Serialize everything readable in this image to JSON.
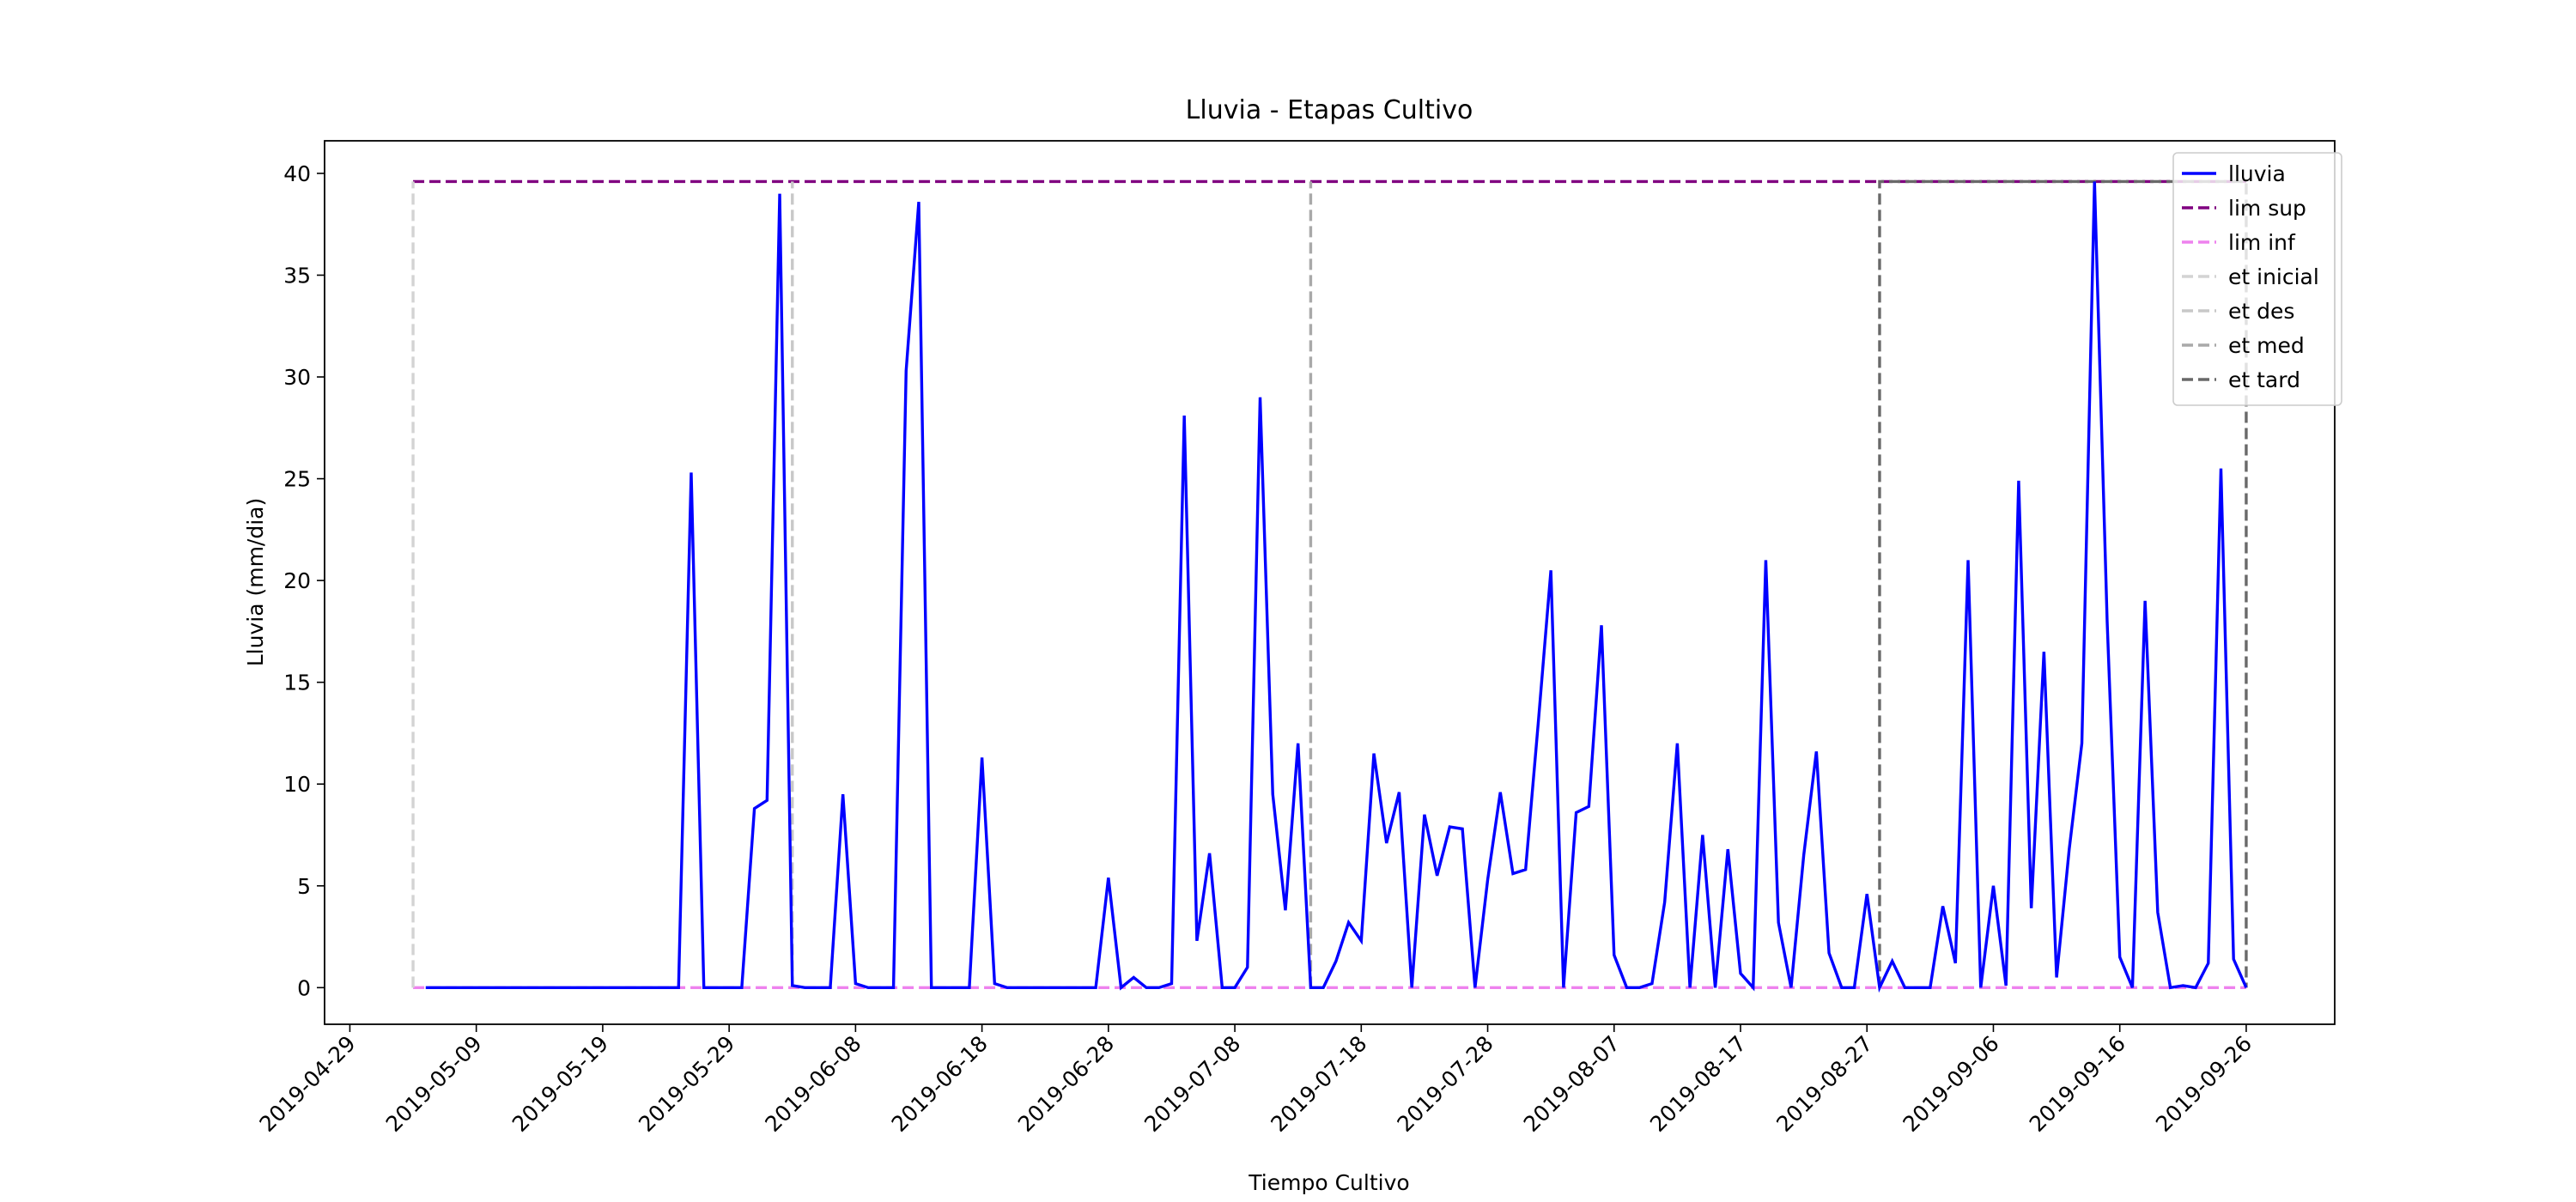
{
  "chart_data": {
    "type": "line",
    "title": "Lluvia - Etapas Cultivo",
    "x_label": "Tiempo Cultivo",
    "y_label": "Lluvia (mm/dia)",
    "xlim": [
      "2019-04-27",
      "2019-10-03"
    ],
    "xticks": [
      "2019-04-29",
      "2019-05-09",
      "2019-05-19",
      "2019-05-29",
      "2019-06-08",
      "2019-06-18",
      "2019-06-28",
      "2019-07-08",
      "2019-07-18",
      "2019-07-28",
      "2019-08-07",
      "2019-08-17",
      "2019-08-27",
      "2019-09-06",
      "2019-09-16",
      "2019-09-26"
    ],
    "ylim": [
      -1.8,
      41.6
    ],
    "yticks": [
      0,
      5,
      10,
      15,
      20,
      25,
      30,
      35,
      40
    ],
    "legend": "upper right",
    "series": [
      {
        "name": "lluvia",
        "color": "#0000ff",
        "linestyle": "-",
        "x": [
          "2019-05-05",
          "2019-05-06",
          "2019-05-07",
          "2019-05-08",
          "2019-05-09",
          "2019-05-10",
          "2019-05-11",
          "2019-05-12",
          "2019-05-13",
          "2019-05-14",
          "2019-05-15",
          "2019-05-16",
          "2019-05-17",
          "2019-05-18",
          "2019-05-19",
          "2019-05-20",
          "2019-05-21",
          "2019-05-22",
          "2019-05-23",
          "2019-05-24",
          "2019-05-25",
          "2019-05-26",
          "2019-05-27",
          "2019-05-28",
          "2019-05-29",
          "2019-05-30",
          "2019-05-31",
          "2019-06-01",
          "2019-06-02",
          "2019-06-03",
          "2019-06-04",
          "2019-06-05",
          "2019-06-06",
          "2019-06-07",
          "2019-06-08",
          "2019-06-09",
          "2019-06-10",
          "2019-06-11",
          "2019-06-12",
          "2019-06-13",
          "2019-06-14",
          "2019-06-15",
          "2019-06-16",
          "2019-06-17",
          "2019-06-18",
          "2019-06-19",
          "2019-06-20",
          "2019-06-21",
          "2019-06-22",
          "2019-06-23",
          "2019-06-24",
          "2019-06-25",
          "2019-06-26",
          "2019-06-27",
          "2019-06-28",
          "2019-06-29",
          "2019-06-30",
          "2019-07-01",
          "2019-07-02",
          "2019-07-03",
          "2019-07-04",
          "2019-07-05",
          "2019-07-06",
          "2019-07-07",
          "2019-07-08",
          "2019-07-09",
          "2019-07-10",
          "2019-07-11",
          "2019-07-12",
          "2019-07-13",
          "2019-07-14",
          "2019-07-15",
          "2019-07-16",
          "2019-07-17",
          "2019-07-18",
          "2019-07-19",
          "2019-07-20",
          "2019-07-21",
          "2019-07-22",
          "2019-07-23",
          "2019-07-24",
          "2019-07-25",
          "2019-07-26",
          "2019-07-27",
          "2019-07-28",
          "2019-07-29",
          "2019-07-30",
          "2019-07-31",
          "2019-08-01",
          "2019-08-02",
          "2019-08-03",
          "2019-08-04",
          "2019-08-05",
          "2019-08-06",
          "2019-08-07",
          "2019-08-08",
          "2019-08-09",
          "2019-08-10",
          "2019-08-11",
          "2019-08-12",
          "2019-08-13",
          "2019-08-14",
          "2019-08-15",
          "2019-08-16",
          "2019-08-17",
          "2019-08-18",
          "2019-08-19",
          "2019-08-20",
          "2019-08-21",
          "2019-08-22",
          "2019-08-23",
          "2019-08-24",
          "2019-08-25",
          "2019-08-26",
          "2019-08-27",
          "2019-08-28",
          "2019-08-29",
          "2019-08-30",
          "2019-08-31",
          "2019-09-01",
          "2019-09-02",
          "2019-09-03",
          "2019-09-04",
          "2019-09-05",
          "2019-09-06",
          "2019-09-07",
          "2019-09-08",
          "2019-09-09",
          "2019-09-10",
          "2019-09-11",
          "2019-09-12",
          "2019-09-13",
          "2019-09-14",
          "2019-09-15",
          "2019-09-16",
          "2019-09-17",
          "2019-09-18",
          "2019-09-19",
          "2019-09-20",
          "2019-09-21",
          "2019-09-22",
          "2019-09-23",
          "2019-09-24",
          "2019-09-25",
          "2019-09-26"
        ],
        "values": [
          0,
          0,
          0,
          0,
          0,
          0,
          0,
          0,
          0,
          0,
          0,
          0,
          0,
          0,
          0,
          0,
          0,
          0,
          0,
          0,
          0,
          25.3,
          0,
          0,
          0,
          0,
          8.8,
          9.2,
          39,
          0.1,
          0,
          0,
          0,
          9.5,
          0.2,
          0,
          0,
          0,
          30.3,
          38.6,
          0,
          0,
          0,
          0,
          11.3,
          0.2,
          0,
          0,
          0,
          0,
          0,
          0,
          0,
          0,
          5.4,
          0,
          0.5,
          0,
          0,
          0.2,
          28.1,
          2.3,
          6.6,
          0,
          0,
          1.0,
          29,
          9.5,
          3.8,
          12,
          0,
          0,
          1.3,
          3.2,
          2.3,
          11.5,
          7.1,
          9.6,
          0,
          8.5,
          5.5,
          7.9,
          7.8,
          0,
          5.3,
          9.6,
          5.6,
          5.8,
          13,
          20.5,
          0,
          8.6,
          8.9,
          17.8,
          1.6,
          0,
          0,
          0.2,
          4.2,
          12,
          0,
          7.5,
          0,
          6.8,
          0.7,
          0,
          21,
          3.2,
          0,
          6.5,
          11.6,
          1.7,
          0,
          0,
          4.6,
          0,
          1.3,
          0,
          0,
          0,
          4,
          1.2,
          21,
          0,
          5,
          0.1,
          24.9,
          3.9,
          16.5,
          0.5,
          6.8,
          12,
          39.6,
          18,
          1.5,
          0,
          19,
          3.7,
          0,
          0.1,
          0,
          1.2,
          25.5,
          1.4,
          0
        ]
      },
      {
        "name": "lim sup",
        "color": "#800080",
        "linestyle": "--",
        "x": [
          "2019-05-04",
          "2019-09-26"
        ],
        "values": [
          39.6,
          39.6
        ]
      },
      {
        "name": "lim inf",
        "color": "#ee82ee",
        "linestyle": "--",
        "x": [
          "2019-05-04",
          "2019-09-26"
        ],
        "values": [
          0,
          0
        ]
      },
      {
        "name": "et inicial",
        "color": "#d3d3d3",
        "linestyle": "--",
        "x": [
          "2019-05-04",
          "2019-05-04"
        ],
        "values": [
          0,
          39.6
        ]
      },
      {
        "name": "et des",
        "color": "#c8c8c8",
        "linestyle": "--",
        "x": [
          "2019-06-03",
          "2019-06-03"
        ],
        "values": [
          0,
          39.6
        ]
      },
      {
        "name": "et med",
        "color": "#a9a9a9",
        "linestyle": "--",
        "x": [
          "2019-07-14",
          "2019-07-14"
        ],
        "values": [
          0,
          39.6
        ]
      },
      {
        "name": "et tard",
        "color": "#696969",
        "linestyle": "--",
        "x": [
          "2019-08-28",
          "2019-08-28",
          "2019-09-26",
          "2019-09-26"
        ],
        "values": [
          0,
          39.6,
          39.6,
          0
        ]
      }
    ]
  }
}
